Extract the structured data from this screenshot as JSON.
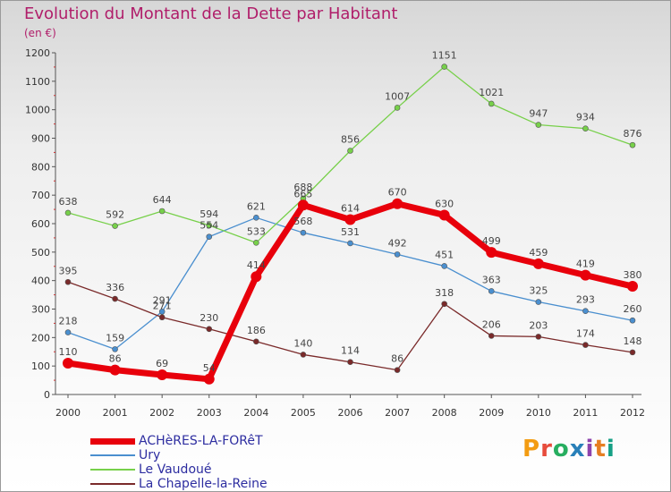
{
  "header": {
    "title": "Evolution du Montant de la Dette par Habitant",
    "subtitle": "(en €)"
  },
  "logo": {
    "text": "Proxiti",
    "colors": [
      "#f39c12",
      "#e74c3c",
      "#27ae60",
      "#2980b9",
      "#8e44ad",
      "#e67e22",
      "#16a085"
    ]
  },
  "chart_data": {
    "type": "line",
    "title": "Evolution du Montant de la Dette par Habitant",
    "subtitle": "(en €)",
    "x": [
      "2000",
      "2001",
      "2002",
      "2003",
      "2004",
      "2005",
      "2006",
      "2007",
      "2008",
      "2009",
      "2010",
      "2011",
      "2012"
    ],
    "y_ticks": [
      "0",
      "100",
      "200",
      "300",
      "400",
      "500",
      "600",
      "700",
      "800",
      "900",
      "1000",
      "1100",
      "1200"
    ],
    "ylim": [
      0,
      1200
    ],
    "grid": false,
    "legend": "bottom-left",
    "series": [
      {
        "name": "ACHèRES-LA-FORêT",
        "color": "#e8000b",
        "width": "thick",
        "values": [
          110,
          86,
          69,
          54,
          414,
          665,
          614,
          670,
          630,
          499,
          459,
          419,
          380
        ],
        "labels": [
          "110",
          "86",
          "69",
          "54",
          "414",
          "665",
          "614",
          "670",
          "630",
          "499",
          "459",
          "419",
          "380"
        ]
      },
      {
        "name": "Ury",
        "color": "#4a8fcf",
        "width": "thin",
        "values": [
          218,
          159,
          291,
          554,
          621,
          568,
          531,
          492,
          451,
          363,
          325,
          293,
          260
        ],
        "labels": [
          "218",
          "159",
          "291",
          "554",
          "621",
          "568",
          "531",
          "492",
          "451",
          "363",
          "325",
          "293",
          "260"
        ]
      },
      {
        "name": "Le Vaudoué",
        "color": "#77d04a",
        "width": "thin",
        "values": [
          638,
          592,
          644,
          594,
          533,
          688,
          856,
          1007,
          1151,
          1021,
          947,
          934,
          876
        ],
        "labels": [
          "638",
          "592",
          "644",
          "594",
          "533",
          "688",
          "856",
          "1007",
          "1151",
          "1021",
          "947",
          "934",
          "876"
        ]
      },
      {
        "name": "La Chapelle-la-Reine",
        "color": "#7a2a2a",
        "width": "thin",
        "values": [
          395,
          336,
          271,
          230,
          186,
          140,
          114,
          86,
          318,
          206,
          203,
          174,
          148
        ],
        "labels": [
          "395",
          "336",
          "271",
          "230",
          "186",
          "140",
          "114",
          "86",
          "318",
          "206",
          "203",
          "174",
          "148"
        ]
      }
    ]
  }
}
